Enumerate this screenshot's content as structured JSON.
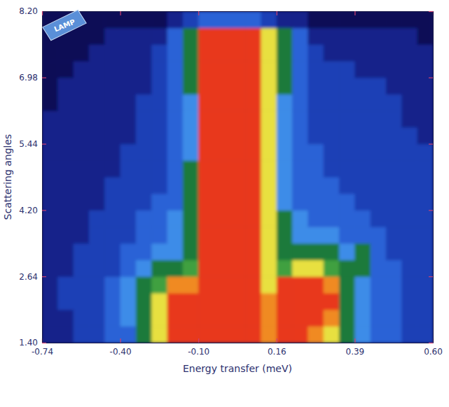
{
  "chart_data": {
    "type": "heatmap",
    "x_label": "Energy transfer (meV)",
    "y_label": "Scattering angles",
    "annotations": [
      "LAMP"
    ],
    "xlim": [
      -0.74,
      0.6
    ],
    "ylim": [
      1.4,
      8.2
    ],
    "xticks": [
      -0.74,
      {
        "value": -0.4,
        "label": "-0.40"
      },
      {
        "value": -0.1,
        "label": "-0.10"
      },
      0.16,
      0.39,
      {
        "value": 0.6,
        "label": "0.60"
      }
    ],
    "yticks": [
      {
        "value": 1.4,
        "label": "1.40"
      },
      2.64,
      {
        "value": 4.2,
        "label": "4.20"
      },
      5.44,
      6.98,
      {
        "value": 8.2,
        "label": "8.20"
      }
    ],
    "x_edges": [
      -0.74,
      -0.672,
      -0.604,
      -0.536,
      -0.468,
      -0.4,
      -0.34,
      -0.28,
      -0.22,
      -0.16,
      -0.1,
      -0.048,
      0.004,
      0.056,
      0.108,
      0.16,
      0.206,
      0.252,
      0.298,
      0.344,
      0.39,
      0.432,
      0.474,
      0.516,
      0.558,
      0.6
    ],
    "y_edges": [
      1.4,
      1.71,
      2.02,
      2.33,
      2.64,
      3.03,
      3.42,
      3.81,
      4.2,
      4.51,
      4.82,
      5.13,
      5.44,
      5.825,
      6.21,
      6.595,
      6.98,
      7.285,
      7.59,
      7.895,
      8.2
    ],
    "cells": [
      [
        1,
        1,
        2,
        2,
        3,
        3,
        5,
        7,
        9,
        9,
        9,
        9,
        9,
        9,
        8,
        9,
        9,
        8,
        7,
        5,
        4,
        3,
        3,
        2,
        2
      ],
      [
        1,
        1,
        2,
        2,
        3,
        4,
        5,
        7,
        9,
        9,
        9,
        9,
        9,
        9,
        8,
        9,
        9,
        9,
        8,
        5,
        4,
        3,
        3,
        2,
        2
      ],
      [
        1,
        2,
        2,
        2,
        3,
        4,
        5,
        7,
        9,
        9,
        9,
        9,
        9,
        9,
        8,
        9,
        9,
        9,
        9,
        5,
        4,
        3,
        3,
        2,
        2
      ],
      [
        1,
        2,
        2,
        2,
        3,
        4,
        5,
        6,
        8,
        8,
        9,
        9,
        9,
        9,
        7,
        9,
        9,
        9,
        8,
        5,
        4,
        3,
        3,
        2,
        2
      ],
      [
        1,
        1,
        2,
        2,
        2,
        3,
        4,
        5,
        5,
        6,
        9,
        9,
        9,
        9,
        7,
        6,
        7,
        7,
        6,
        5,
        5,
        3,
        3,
        2,
        2
      ],
      [
        1,
        1,
        2,
        2,
        2,
        3,
        3,
        4,
        4,
        5,
        9,
        9,
        9,
        9,
        7,
        5,
        5,
        5,
        5,
        4,
        5,
        3,
        2,
        2,
        2
      ],
      [
        1,
        1,
        1,
        2,
        2,
        2,
        3,
        3,
        4,
        5,
        9,
        9,
        9,
        9,
        7,
        5,
        4,
        4,
        4,
        3,
        3,
        3,
        2,
        2,
        2
      ],
      [
        1,
        1,
        1,
        2,
        2,
        2,
        3,
        3,
        4,
        5,
        9,
        9,
        9,
        9,
        7,
        5,
        4,
        3,
        3,
        3,
        3,
        2,
        2,
        2,
        2
      ],
      [
        1,
        1,
        1,
        1,
        2,
        2,
        2,
        3,
        3,
        5,
        9,
        9,
        9,
        9,
        7,
        4,
        3,
        3,
        3,
        3,
        2,
        2,
        2,
        2,
        2
      ],
      [
        1,
        1,
        1,
        1,
        2,
        2,
        2,
        2,
        3,
        5,
        9,
        9,
        9,
        9,
        7,
        4,
        3,
        3,
        3,
        2,
        2,
        2,
        2,
        2,
        2
      ],
      [
        1,
        1,
        1,
        1,
        1,
        2,
        2,
        2,
        3,
        5,
        9,
        9,
        9,
        9,
        7,
        4,
        3,
        3,
        2,
        2,
        2,
        2,
        2,
        2,
        2
      ],
      [
        1,
        1,
        1,
        1,
        1,
        2,
        2,
        2,
        3,
        4,
        9,
        9,
        9,
        9,
        7,
        4,
        3,
        3,
        2,
        2,
        2,
        2,
        2,
        2,
        2
      ],
      [
        1,
        1,
        1,
        1,
        1,
        1,
        2,
        2,
        3,
        4,
        9,
        9,
        9,
        9,
        7,
        4,
        3,
        2,
        2,
        2,
        2,
        2,
        2,
        2,
        1
      ],
      [
        1,
        1,
        1,
        1,
        1,
        1,
        2,
        2,
        3,
        4,
        9,
        9,
        9,
        9,
        7,
        4,
        3,
        2,
        2,
        2,
        2,
        2,
        2,
        1,
        1
      ],
      [
        0,
        1,
        1,
        1,
        1,
        1,
        2,
        2,
        3,
        4,
        9,
        9,
        9,
        9,
        7,
        4,
        3,
        2,
        2,
        2,
        2,
        2,
        2,
        1,
        1
      ],
      [
        0,
        1,
        1,
        1,
        1,
        1,
        1,
        2,
        3,
        5,
        9,
        9,
        9,
        9,
        7,
        5,
        3,
        2,
        2,
        2,
        2,
        2,
        1,
        1,
        1
      ],
      [
        0,
        0,
        1,
        1,
        1,
        1,
        1,
        2,
        3,
        5,
        9,
        9,
        9,
        9,
        7,
        5,
        3,
        2,
        2,
        2,
        1,
        1,
        1,
        1,
        1
      ],
      [
        0,
        0,
        0,
        1,
        1,
        1,
        1,
        2,
        3,
        5,
        9,
        9,
        9,
        9,
        7,
        5,
        3,
        2,
        1,
        1,
        1,
        1,
        1,
        1,
        1
      ],
      [
        0,
        0,
        0,
        0,
        1,
        1,
        1,
        1,
        3,
        5,
        9,
        9,
        9,
        9,
        7,
        5,
        3,
        1,
        1,
        1,
        1,
        1,
        1,
        1,
        0
      ],
      [
        0,
        0,
        0,
        0,
        0,
        0,
        0,
        0,
        1,
        2,
        3,
        3,
        3,
        3,
        2,
        1,
        1,
        0,
        0,
        0,
        0,
        0,
        0,
        0,
        0
      ]
    ]
  }
}
